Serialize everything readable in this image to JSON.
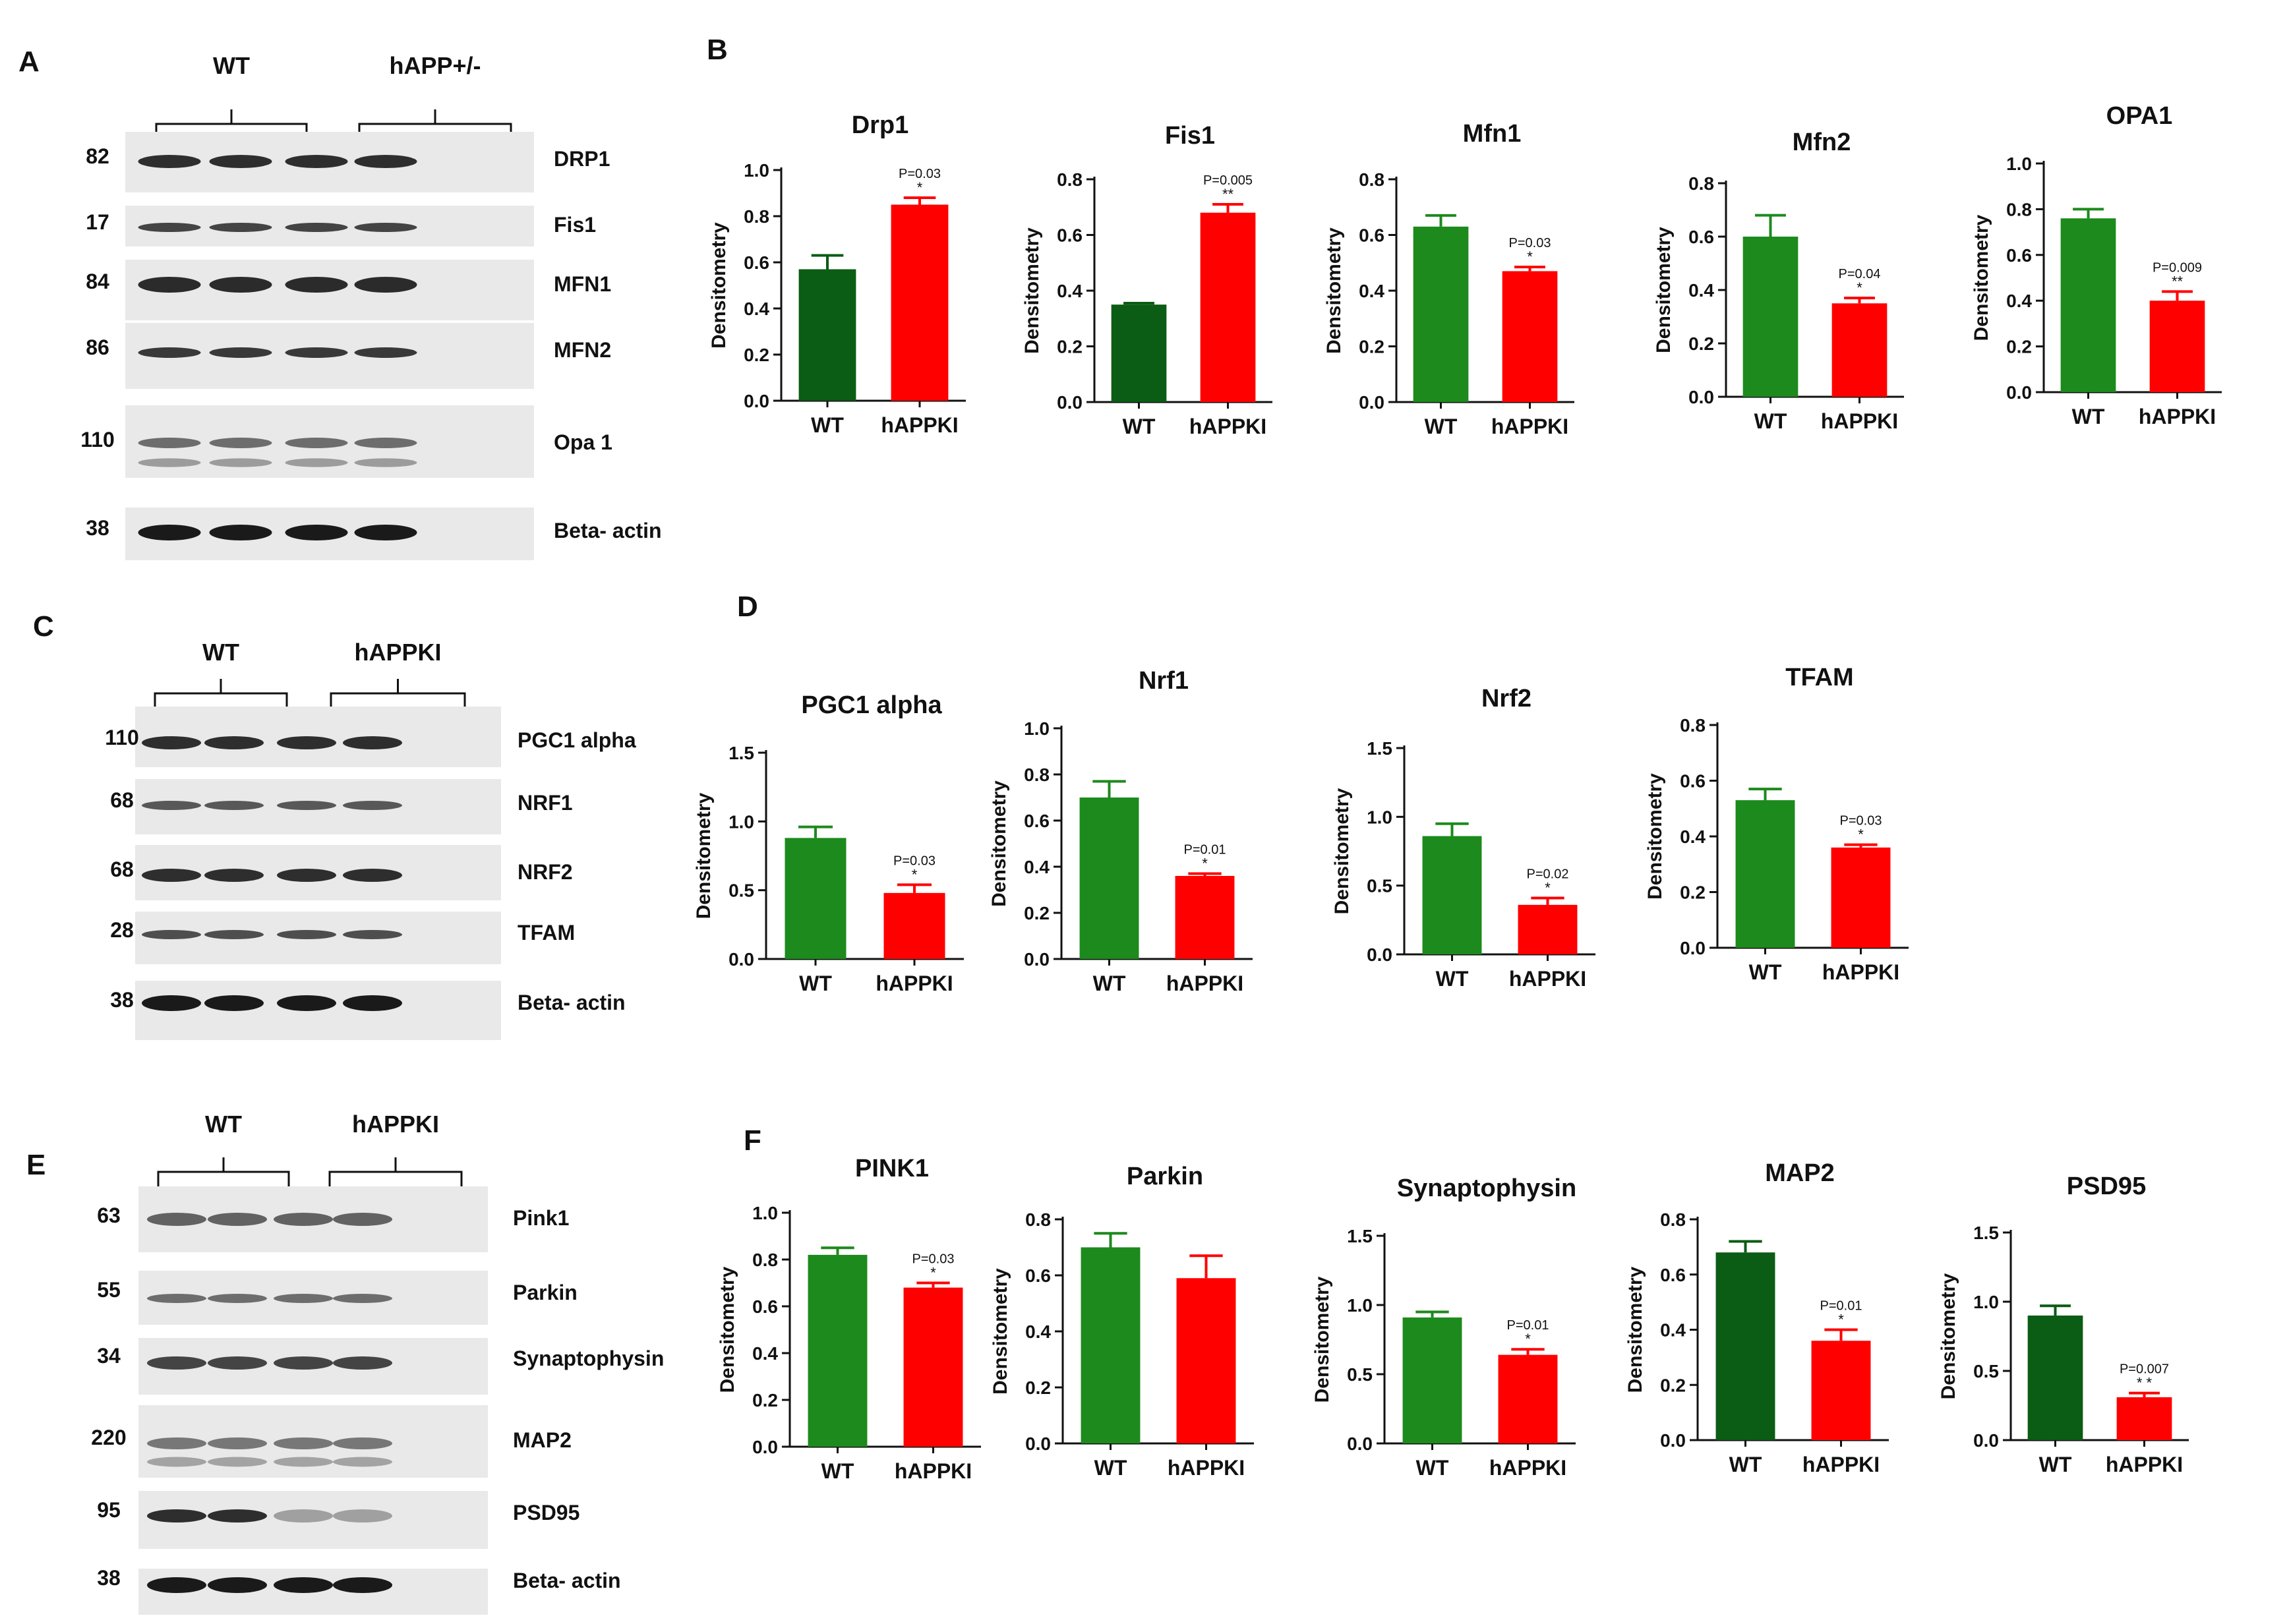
{
  "panels": {
    "A": {
      "label": "A",
      "groups": [
        "WT",
        "hAPP+/-"
      ],
      "bands": [
        {
          "mw": "82",
          "name": "DRP1"
        },
        {
          "mw": "17",
          "name": "Fis1"
        },
        {
          "mw": "84",
          "name": "MFN1"
        },
        {
          "mw": "86",
          "name": "MFN2"
        },
        {
          "mw": "110",
          "name": "Opa 1"
        },
        {
          "mw": "38",
          "name": "Beta- actin"
        }
      ]
    },
    "C": {
      "label": "C",
      "groups": [
        "WT",
        "hAPPKI"
      ],
      "bands": [
        {
          "mw": "110",
          "name": "PGC1 alpha"
        },
        {
          "mw": "68",
          "name": "NRF1"
        },
        {
          "mw": "68",
          "name": "NRF2"
        },
        {
          "mw": "28",
          "name": "TFAM"
        },
        {
          "mw": "38",
          "name": "Beta- actin"
        }
      ]
    },
    "E": {
      "label": "E",
      "groups": [
        "WT",
        "hAPPKI"
      ],
      "bands": [
        {
          "mw": "63",
          "name": "Pink1"
        },
        {
          "mw": "55",
          "name": "Parkin"
        },
        {
          "mw": "34",
          "name": "Synaptophysin"
        },
        {
          "mw": "220",
          "name": "MAP2"
        },
        {
          "mw": "95",
          "name": "PSD95"
        },
        {
          "mw": "38",
          "name": "Beta- actin"
        }
      ]
    },
    "B": {
      "label": "B"
    },
    "D": {
      "label": "D"
    },
    "F": {
      "label": "F"
    }
  },
  "colors": {
    "dark_green": "#0b5c14",
    "green": "#1c8a1c",
    "red": "#ff0000"
  },
  "chart_data": [
    {
      "type": "bar",
      "panel": "B",
      "title": "Drp1",
      "ylabel": "Densitometry",
      "ylim": [
        0,
        1.0
      ],
      "yticks": [
        "0.0",
        "0.2",
        "0.4",
        "0.6",
        "0.8",
        "1.0"
      ],
      "categories": [
        "WT",
        "hAPPKI"
      ],
      "values": [
        0.57,
        0.85
      ],
      "errors": [
        0.06,
        0.03
      ],
      "colors": [
        "dark_green",
        "red"
      ],
      "annotation": {
        "p": "P=0.03",
        "stars": "*"
      }
    },
    {
      "type": "bar",
      "panel": "B",
      "title": "Fis1",
      "ylabel": "Densitometry",
      "ylim": [
        0,
        0.8
      ],
      "yticks": [
        "0.0",
        "0.2",
        "0.4",
        "0.6",
        "0.8"
      ],
      "categories": [
        "WT",
        "hAPPKI"
      ],
      "values": [
        0.35,
        0.68
      ],
      "errors": [
        0.005,
        0.03
      ],
      "colors": [
        "dark_green",
        "red"
      ],
      "annotation": {
        "p": "P=0.005",
        "stars": "**"
      }
    },
    {
      "type": "bar",
      "panel": "B",
      "title": "Mfn1",
      "ylabel": "Densitometry",
      "ylim": [
        0,
        0.8
      ],
      "yticks": [
        "0.0",
        "0.2",
        "0.4",
        "0.6",
        "0.8"
      ],
      "categories": [
        "WT",
        "hAPPKI"
      ],
      "values": [
        0.63,
        0.47
      ],
      "errors": [
        0.04,
        0.015
      ],
      "colors": [
        "green",
        "red"
      ],
      "annotation": {
        "p": "P=0.03",
        "stars": "*"
      }
    },
    {
      "type": "bar",
      "panel": "B",
      "title": "Mfn2",
      "ylabel": "Densitometry",
      "ylim": [
        0,
        0.8
      ],
      "yticks": [
        "0.0",
        "0.2",
        "0.4",
        "0.6",
        "0.8"
      ],
      "categories": [
        "WT",
        "hAPPKI"
      ],
      "values": [
        0.6,
        0.35
      ],
      "errors": [
        0.08,
        0.02
      ],
      "colors": [
        "green",
        "red"
      ],
      "annotation": {
        "p": "P=0.04",
        "stars": "*"
      }
    },
    {
      "type": "bar",
      "panel": "B",
      "title": "OPA1",
      "ylabel": "Densitometry",
      "ylim": [
        0,
        1.0
      ],
      "yticks": [
        "0.0",
        "0.2",
        "0.4",
        "0.6",
        "0.8",
        "1.0"
      ],
      "categories": [
        "WT",
        "hAPPKI"
      ],
      "values": [
        0.76,
        0.4
      ],
      "errors": [
        0.04,
        0.04
      ],
      "colors": [
        "green",
        "red"
      ],
      "annotation": {
        "p": "P=0.009",
        "stars": "**"
      }
    },
    {
      "type": "bar",
      "panel": "D",
      "title": "PGC1 alpha",
      "ylabel": "Densitometry",
      "ylim": [
        0,
        1.5
      ],
      "yticks": [
        "0.0",
        "0.5",
        "1.0",
        "1.5"
      ],
      "categories": [
        "WT",
        "hAPPKI"
      ],
      "values": [
        0.88,
        0.48
      ],
      "errors": [
        0.08,
        0.06
      ],
      "colors": [
        "green",
        "red"
      ],
      "annotation": {
        "p": "P=0.03",
        "stars": "*"
      }
    },
    {
      "type": "bar",
      "panel": "D",
      "title": "Nrf1",
      "ylabel": "Densitometry",
      "ylim": [
        0,
        1.0
      ],
      "yticks": [
        "0.0",
        "0.2",
        "0.4",
        "0.6",
        "0.8",
        "1.0"
      ],
      "categories": [
        "WT",
        "hAPPKI"
      ],
      "values": [
        0.7,
        0.36
      ],
      "errors": [
        0.07,
        0.01
      ],
      "colors": [
        "green",
        "red"
      ],
      "annotation": {
        "p": "P=0.01",
        "stars": "*"
      }
    },
    {
      "type": "bar",
      "panel": "D",
      "title": "Nrf2",
      "ylabel": "Densitometry",
      "ylim": [
        0,
        1.5
      ],
      "yticks": [
        "0.0",
        "0.5",
        "1.0",
        "1.5"
      ],
      "categories": [
        "WT",
        "hAPPKI"
      ],
      "values": [
        0.86,
        0.36
      ],
      "errors": [
        0.09,
        0.05
      ],
      "colors": [
        "green",
        "red"
      ],
      "annotation": {
        "p": "P=0.02",
        "stars": "*"
      }
    },
    {
      "type": "bar",
      "panel": "D",
      "title": "TFAM",
      "ylabel": "Densitometry",
      "ylim": [
        0,
        0.8
      ],
      "yticks": [
        "0.0",
        "0.2",
        "0.4",
        "0.6",
        "0.8"
      ],
      "categories": [
        "WT",
        "hAPPKI"
      ],
      "values": [
        0.53,
        0.36
      ],
      "errors": [
        0.04,
        0.01
      ],
      "colors": [
        "green",
        "red"
      ],
      "annotation": {
        "p": "P=0.03",
        "stars": "*"
      }
    },
    {
      "type": "bar",
      "panel": "F",
      "title": "PINK1",
      "ylabel": "Densitometry",
      "ylim": [
        0,
        1.0
      ],
      "yticks": [
        "0.0",
        "0.2",
        "0.4",
        "0.6",
        "0.8",
        "1.0"
      ],
      "categories": [
        "WT",
        "hAPPKI"
      ],
      "values": [
        0.82,
        0.68
      ],
      "errors": [
        0.03,
        0.02
      ],
      "colors": [
        "green",
        "red"
      ],
      "annotation": {
        "p": "P=0.03",
        "stars": "*"
      }
    },
    {
      "type": "bar",
      "panel": "F",
      "title": "Parkin",
      "ylabel": "Densitometry",
      "ylim": [
        0,
        0.8
      ],
      "yticks": [
        "0.0",
        "0.2",
        "0.4",
        "0.6",
        "0.8"
      ],
      "categories": [
        "WT",
        "hAPPKI"
      ],
      "values": [
        0.7,
        0.59
      ],
      "errors": [
        0.05,
        0.08
      ],
      "colors": [
        "green",
        "red"
      ],
      "annotation": null
    },
    {
      "type": "bar",
      "panel": "F",
      "title": "Synaptophysin",
      "ylabel": "Densitometry",
      "ylim": [
        0,
        1.5
      ],
      "yticks": [
        "0.0",
        "0.5",
        "1.0",
        "1.5"
      ],
      "categories": [
        "WT",
        "hAPPKI"
      ],
      "values": [
        0.91,
        0.64
      ],
      "errors": [
        0.04,
        0.04
      ],
      "colors": [
        "green",
        "red"
      ],
      "annotation": {
        "p": "P=0.01",
        "stars": "*"
      }
    },
    {
      "type": "bar",
      "panel": "F",
      "title": "MAP2",
      "ylabel": "Densitometry",
      "ylim": [
        0,
        0.8
      ],
      "yticks": [
        "0.0",
        "0.2",
        "0.4",
        "0.6",
        "0.8"
      ],
      "categories": [
        "WT",
        "hAPPKI"
      ],
      "values": [
        0.68,
        0.36
      ],
      "errors": [
        0.04,
        0.04
      ],
      "colors": [
        "dark_green",
        "red"
      ],
      "annotation": {
        "p": "P=0.01",
        "stars": "*"
      }
    },
    {
      "type": "bar",
      "panel": "F",
      "title": "PSD95",
      "ylabel": "Densitometry",
      "ylim": [
        0,
        1.5
      ],
      "yticks": [
        "0.0",
        "0.5",
        "1.0",
        "1.5"
      ],
      "categories": [
        "WT",
        "hAPPKI"
      ],
      "values": [
        0.9,
        0.31
      ],
      "errors": [
        0.07,
        0.03
      ],
      "colors": [
        "dark_green",
        "red"
      ],
      "annotation": {
        "p": "P=0.007",
        "stars": "* *"
      }
    }
  ]
}
